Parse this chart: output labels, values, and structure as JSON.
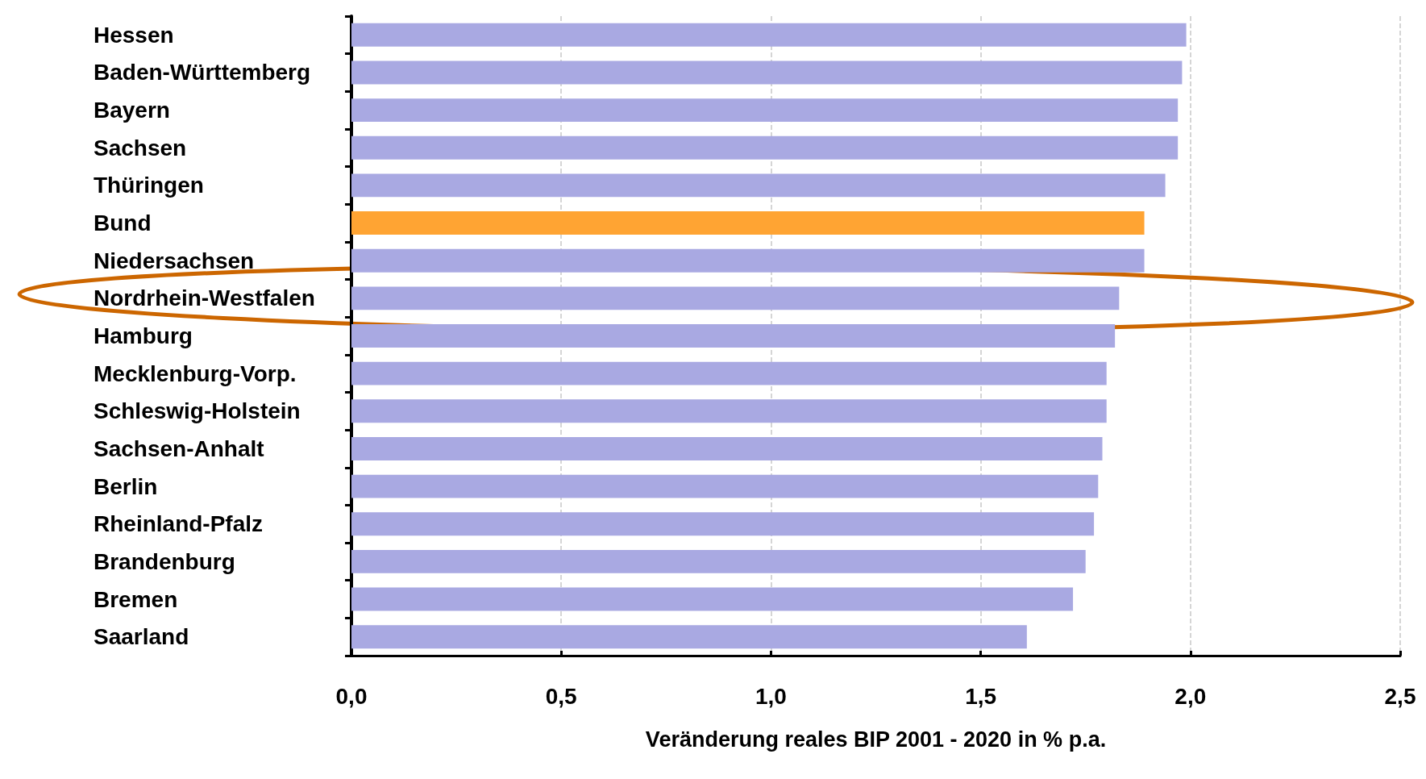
{
  "chart_data": {
    "type": "bar",
    "orientation": "horizontal",
    "xlabel": "Veränderung reales BIP 2001 - 2020 in % p.a.",
    "categories": [
      "Hessen",
      "Baden-Württemberg",
      "Bayern",
      "Sachsen",
      "Thüringen",
      "Bund",
      "Niedersachsen",
      "Nordrhein-Westfalen",
      "Hamburg",
      "Mecklenburg-Vorp.",
      "Schleswig-Holstein",
      "Sachsen-Anhalt",
      "Berlin",
      "Rheinland-Pfalz",
      "Brandenburg",
      "Bremen",
      "Saarland"
    ],
    "values": [
      1.99,
      1.98,
      1.97,
      1.97,
      1.94,
      1.89,
      1.89,
      1.83,
      1.82,
      1.8,
      1.8,
      1.79,
      1.78,
      1.77,
      1.75,
      1.72,
      1.61
    ],
    "colors": [
      "#a9a9e2",
      "#a9a9e2",
      "#a9a9e2",
      "#a9a9e2",
      "#a9a9e2",
      "#ffa433",
      "#a9a9e2",
      "#a9a9e2",
      "#a9a9e2",
      "#a9a9e2",
      "#a9a9e2",
      "#a9a9e2",
      "#a9a9e2",
      "#a9a9e2",
      "#a9a9e2",
      "#a9a9e2",
      "#a9a9e2"
    ],
    "xlim": [
      0,
      2.5
    ],
    "xticks": [
      {
        "value": 0,
        "label": "0,0"
      },
      {
        "value": 0.5,
        "label": "0,5"
      },
      {
        "value": 1,
        "label": "1,0"
      },
      {
        "value": 1.5,
        "label": "1,5"
      },
      {
        "value": 2,
        "label": "2,0"
      },
      {
        "value": 2.5,
        "label": "2,5"
      }
    ],
    "grid": "x"
  }
}
